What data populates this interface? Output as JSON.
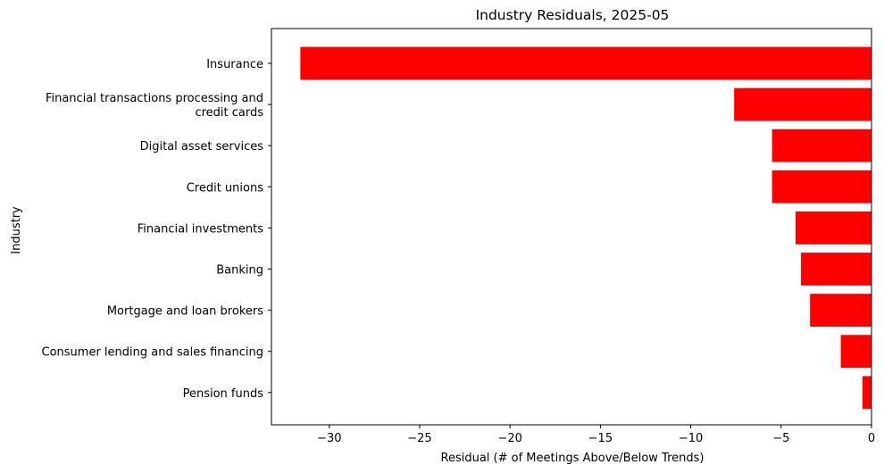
{
  "chart_data": {
    "type": "bar",
    "orientation": "horizontal",
    "title": "Industry Residuals, 2025-05",
    "xlabel": "Residual (# of Meetings Above/Below Trends)",
    "ylabel": "Industry",
    "xlim": [
      -33.2,
      0
    ],
    "xticks": [
      -30,
      -25,
      -20,
      -15,
      -10,
      -5,
      0
    ],
    "xtick_labels": [
      "−30",
      "−25",
      "−20",
      "−15",
      "−10",
      "−5",
      "0"
    ],
    "bar_color": "#ff0000",
    "grid": false,
    "categories": [
      "Insurance",
      "Financial transactions processing and\ncredit cards",
      "Digital asset services",
      "Credit unions",
      "Financial investments",
      "Banking",
      "Mortgage and loan brokers",
      "Consumer lending and sales financing",
      "Pension funds"
    ],
    "values": [
      -31.6,
      -7.6,
      -5.5,
      -5.5,
      -4.2,
      -3.9,
      -3.4,
      -1.7,
      -0.5
    ]
  }
}
